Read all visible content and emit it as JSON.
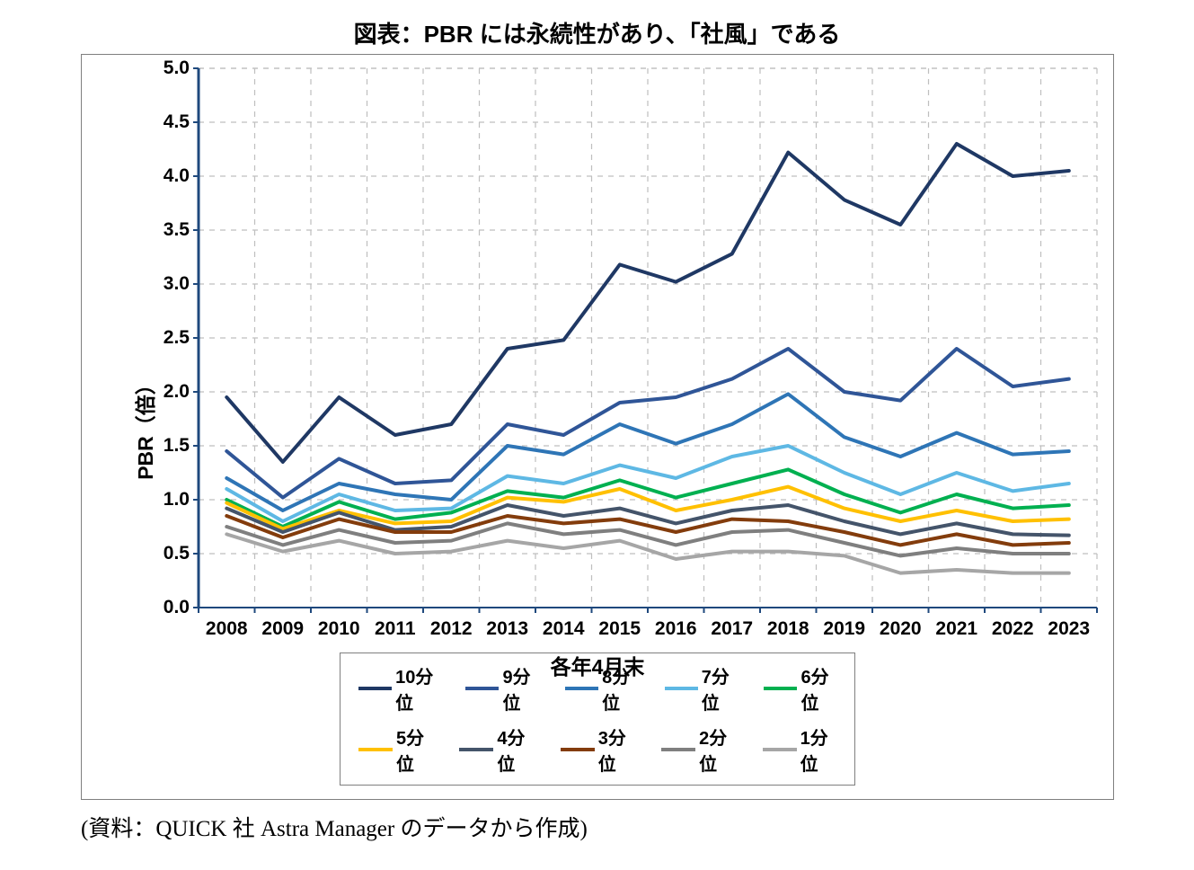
{
  "title": "図表：PBR には永続性があり、「社風」である",
  "title_fontsize": 26,
  "source": "(資料：QUICK 社 Astra Manager のデータから作成)",
  "source_fontsize": 25,
  "chart": {
    "type": "line",
    "background_color": "#ffffff",
    "border_color": "#7f7f7f",
    "grid_color": "#bfbfbf",
    "grid_dash": "6,6",
    "axis_line_color": "#1f497d",
    "y_label": "PBR（倍）",
    "x_label": "各年4月末",
    "label_fontsize": 23,
    "tick_fontsize": 21,
    "legend_fontsize": 20,
    "line_width": 4,
    "x_categories": [
      "2008",
      "2009",
      "2010",
      "2011",
      "2012",
      "2013",
      "2014",
      "2015",
      "2016",
      "2017",
      "2018",
      "2019",
      "2020",
      "2021",
      "2022",
      "2023"
    ],
    "ylim": [
      0.0,
      5.0
    ],
    "ytick_step": 0.5,
    "series": [
      {
        "name": "10分位",
        "color": "#1f3864",
        "values": [
          1.95,
          1.35,
          1.95,
          1.6,
          1.7,
          2.4,
          2.48,
          3.18,
          3.02,
          3.28,
          4.22,
          3.78,
          3.55,
          4.3,
          4.0,
          4.05
        ]
      },
      {
        "name": "9分位",
        "color": "#2f5597",
        "values": [
          1.45,
          1.02,
          1.38,
          1.15,
          1.18,
          1.7,
          1.6,
          1.9,
          1.95,
          2.12,
          2.4,
          2.0,
          1.92,
          2.4,
          2.05,
          2.12
        ]
      },
      {
        "name": "8分位",
        "color": "#2e75b6",
        "values": [
          1.2,
          0.9,
          1.15,
          1.05,
          1.0,
          1.5,
          1.42,
          1.7,
          1.52,
          1.7,
          1.98,
          1.58,
          1.4,
          1.62,
          1.42,
          1.45
        ]
      },
      {
        "name": "7分位",
        "color": "#5eb8e4",
        "values": [
          1.1,
          0.8,
          1.05,
          0.9,
          0.92,
          1.22,
          1.15,
          1.32,
          1.2,
          1.4,
          1.5,
          1.25,
          1.05,
          1.25,
          1.08,
          1.15
        ]
      },
      {
        "name": "6分位",
        "color": "#00b050",
        "values": [
          1.0,
          0.75,
          0.98,
          0.82,
          0.88,
          1.08,
          1.02,
          1.18,
          1.02,
          1.15,
          1.28,
          1.05,
          0.88,
          1.05,
          0.92,
          0.95
        ]
      },
      {
        "name": "5分位",
        "color": "#ffc000",
        "values": [
          0.97,
          0.73,
          0.9,
          0.78,
          0.8,
          1.02,
          0.98,
          1.1,
          0.9,
          1.0,
          1.12,
          0.92,
          0.8,
          0.9,
          0.8,
          0.82
        ]
      },
      {
        "name": "4分位",
        "color": "#44546a",
        "values": [
          0.92,
          0.7,
          0.88,
          0.72,
          0.75,
          0.95,
          0.85,
          0.92,
          0.78,
          0.9,
          0.95,
          0.8,
          0.68,
          0.78,
          0.68,
          0.67
        ]
      },
      {
        "name": "3分位",
        "color": "#833c0c",
        "values": [
          0.85,
          0.65,
          0.82,
          0.7,
          0.7,
          0.85,
          0.78,
          0.82,
          0.7,
          0.82,
          0.8,
          0.7,
          0.58,
          0.68,
          0.58,
          0.6
        ]
      },
      {
        "name": "2分位",
        "color": "#7f7f7f",
        "values": [
          0.75,
          0.58,
          0.72,
          0.6,
          0.62,
          0.78,
          0.68,
          0.72,
          0.58,
          0.7,
          0.72,
          0.6,
          0.48,
          0.55,
          0.5,
          0.5
        ]
      },
      {
        "name": "1分位",
        "color": "#a6a6a6",
        "values": [
          0.68,
          0.52,
          0.62,
          0.5,
          0.52,
          0.62,
          0.55,
          0.62,
          0.45,
          0.52,
          0.52,
          0.48,
          0.32,
          0.35,
          0.32,
          0.32
        ]
      }
    ],
    "legend_rows": [
      [
        "10分位",
        "9分位",
        "8分位",
        "7分位",
        "6分位"
      ],
      [
        "5分位",
        "4分位",
        "3分位",
        "2分位",
        "1分位"
      ]
    ]
  }
}
